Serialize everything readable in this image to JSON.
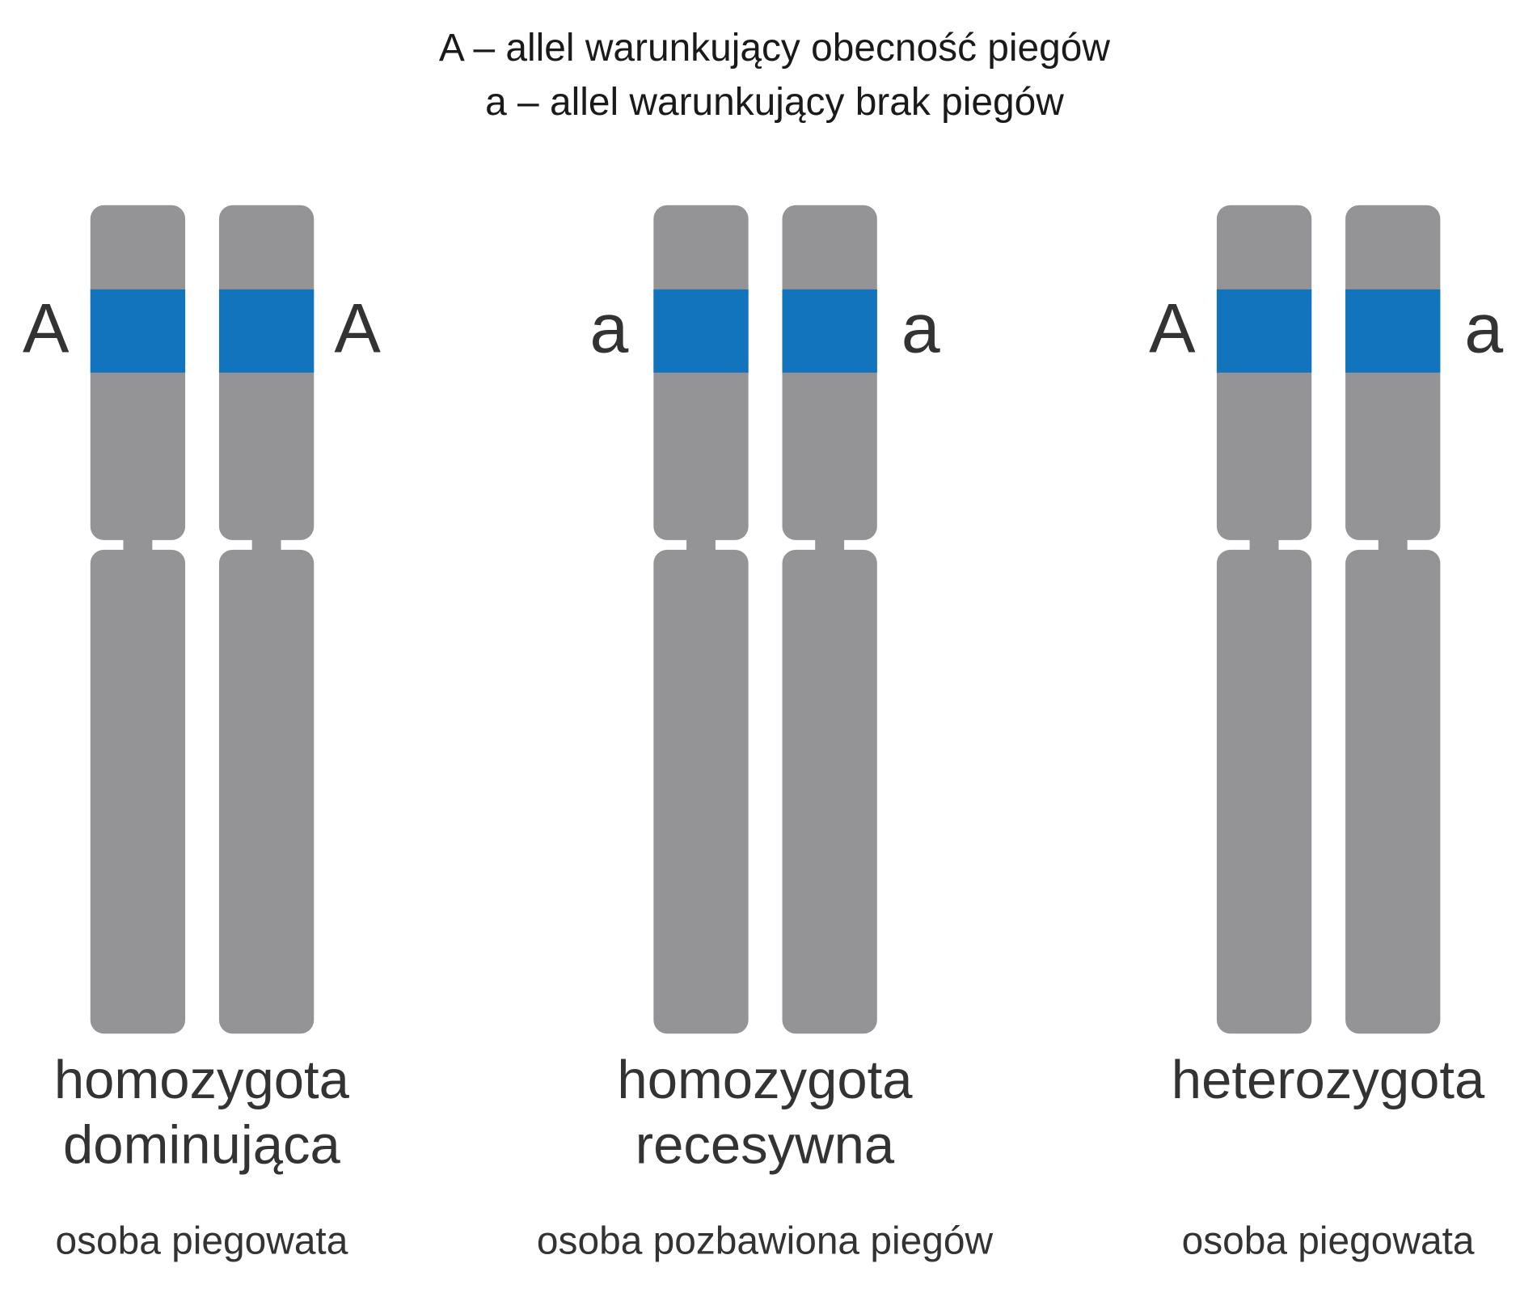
{
  "legend": [
    "A – allel warunkujący obecność piegów",
    "a – allel warunkujący brak piegów"
  ],
  "groups": [
    {
      "left_allele": "A",
      "right_allele": "A",
      "name": [
        "homozygota",
        "dominująca"
      ],
      "phenotype": "osoba piegowata"
    },
    {
      "left_allele": "a",
      "right_allele": "a",
      "name": [
        "homozygota",
        "recesywna"
      ],
      "phenotype": "osoba pozbawiona piegów"
    },
    {
      "left_allele": "A",
      "right_allele": "a",
      "name": [
        "heterozygota"
      ],
      "phenotype": "osoba piegowata"
    }
  ]
}
